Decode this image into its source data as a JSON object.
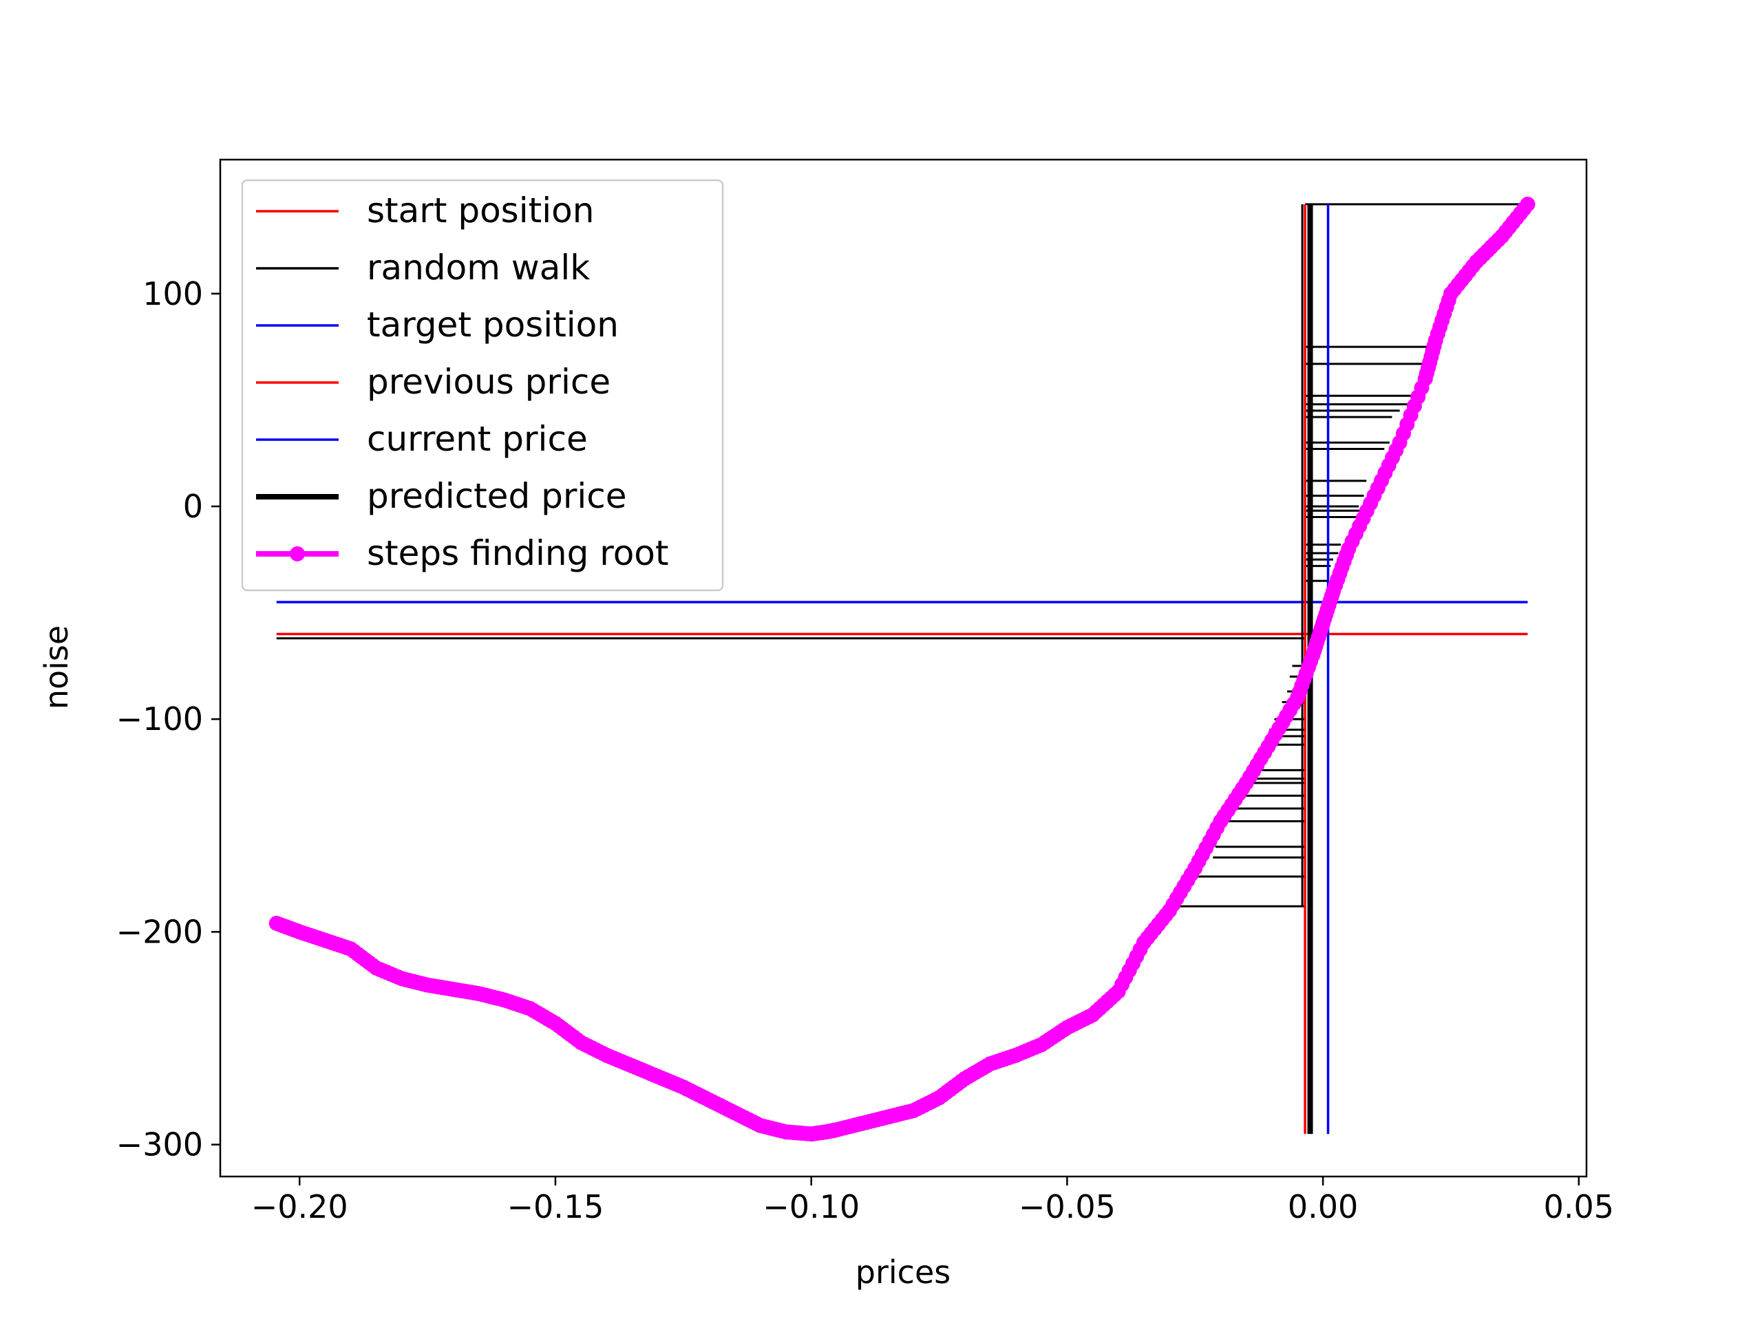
{
  "chart_data": {
    "type": "line",
    "title": "",
    "xlabel": "prices",
    "ylabel": "noise",
    "xlim": [
      -0.2155,
      0.0515
    ],
    "ylim": [
      -315,
      163
    ],
    "xticks": [
      -0.2,
      -0.15,
      -0.1,
      -0.05,
      0.0,
      0.05
    ],
    "xtick_labels": [
      "−0.20",
      "−0.15",
      "−0.10",
      "−0.05",
      "0.00",
      "0.05"
    ],
    "yticks": [
      100,
      0,
      -100,
      -200,
      -300
    ],
    "ytick_labels": [
      "100",
      "0",
      "−100",
      "−200",
      "−300"
    ],
    "grid": false,
    "legend_position": "upper left",
    "legend": [
      {
        "label": "start position",
        "color": "#ff0000",
        "style": "thin"
      },
      {
        "label": "random walk",
        "color": "#000000",
        "style": "thin"
      },
      {
        "label": "target position",
        "color": "#0000ff",
        "style": "thin"
      },
      {
        "label": "previous price",
        "color": "#ff0000",
        "style": "thin"
      },
      {
        "label": "current price",
        "color": "#0000ff",
        "style": "thin"
      },
      {
        "label": "predicted price",
        "color": "#000000",
        "style": "thick"
      },
      {
        "label": "steps finding root",
        "color": "#ff00ff",
        "style": "marker"
      }
    ],
    "series": [
      {
        "name": "start position",
        "kind": "hline",
        "color": "#ff0000",
        "y": -60,
        "x": [
          -0.2045,
          0.04
        ]
      },
      {
        "name": "target position",
        "kind": "hline",
        "color": "#0000ff",
        "y": -45,
        "x": [
          -0.2045,
          0.04
        ]
      },
      {
        "name": "random walk",
        "kind": "hsegments",
        "color": "#000000",
        "x_start": -0.0035,
        "segments": [
          {
            "y": -62,
            "x_end": -0.2045
          },
          {
            "y": 142,
            "x_end": 0.04
          },
          {
            "y": 75,
            "x_end": 0.022
          },
          {
            "y": 67,
            "x_end": 0.02
          },
          {
            "y": 52,
            "x_end": 0.018
          },
          {
            "y": 48,
            "x_end": 0.0165
          },
          {
            "y": 45,
            "x_end": 0.015
          },
          {
            "y": 42,
            "x_end": 0.0135
          },
          {
            "y": 30,
            "x_end": 0.013
          },
          {
            "y": 27,
            "x_end": 0.012
          },
          {
            "y": 12,
            "x_end": 0.0085
          },
          {
            "y": 5,
            "x_end": 0.008
          },
          {
            "y": -2,
            "x_end": 0.0075
          },
          {
            "y": 0,
            "x_end": 0.007
          },
          {
            "y": -5,
            "x_end": 0.0065
          },
          {
            "y": -18,
            "x_end": 0.0035
          },
          {
            "y": -22,
            "x_end": 0.003
          },
          {
            "y": -25,
            "x_end": 0.002
          },
          {
            "y": -28,
            "x_end": 0.0015
          },
          {
            "y": -35,
            "x_end": 0.001
          },
          {
            "y": -75,
            "x_end": -0.006
          },
          {
            "y": -80,
            "x_end": -0.0065
          },
          {
            "y": -87,
            "x_end": -0.007
          },
          {
            "y": -92,
            "x_end": -0.008
          },
          {
            "y": -100,
            "x_end": -0.0095
          },
          {
            "y": -105,
            "x_end": -0.0105
          },
          {
            "y": -108,
            "x_end": -0.011
          },
          {
            "y": -112,
            "x_end": -0.0115
          },
          {
            "y": -124,
            "x_end": -0.015
          },
          {
            "y": -128,
            "x_end": -0.0155
          },
          {
            "y": -130,
            "x_end": -0.016
          },
          {
            "y": -136,
            "x_end": -0.0165
          },
          {
            "y": -142,
            "x_end": -0.0175
          },
          {
            "y": -148,
            "x_end": -0.019
          },
          {
            "y": -160,
            "x_end": -0.021
          },
          {
            "y": -165,
            "x_end": -0.0215
          },
          {
            "y": -174,
            "x_end": -0.0245
          },
          {
            "y": -188,
            "x_end": -0.029
          }
        ]
      },
      {
        "name": "previous price",
        "kind": "vline",
        "color": "#ff0000",
        "x": -0.0035,
        "y": [
          -295,
          142
        ]
      },
      {
        "name": "current price",
        "kind": "vline",
        "color": "#0000ff",
        "x": 0.001,
        "y": [
          -295,
          142
        ]
      },
      {
        "name": "predicted price",
        "kind": "vline",
        "color": "#000000",
        "x": -0.0025,
        "y": [
          -295,
          142
        ]
      },
      {
        "name": "steps finding root",
        "kind": "markers_line",
        "color": "#ff00ff",
        "x": [
          -0.2045,
          -0.2,
          -0.195,
          -0.19,
          -0.185,
          -0.18,
          -0.175,
          -0.17,
          -0.165,
          -0.16,
          -0.155,
          -0.15,
          -0.145,
          -0.14,
          -0.135,
          -0.13,
          -0.125,
          -0.12,
          -0.115,
          -0.11,
          -0.105,
          -0.1,
          -0.097,
          -0.095,
          -0.09,
          -0.085,
          -0.08,
          -0.075,
          -0.07,
          -0.065,
          -0.06,
          -0.055,
          -0.05,
          -0.045,
          -0.04,
          -0.035,
          -0.03,
          -0.025,
          -0.02,
          -0.015,
          -0.01,
          -0.005,
          -0.002,
          0.0,
          0.002,
          0.005,
          0.01,
          0.015,
          0.02,
          0.022,
          0.025,
          0.03,
          0.035,
          0.04
        ],
        "y": [
          -196,
          -200,
          -204,
          -208,
          -217,
          -222,
          -225,
          -227,
          -229,
          -232,
          -236,
          -243,
          -252,
          -258,
          -263,
          -268,
          -273,
          -279,
          -285,
          -291,
          -294,
          -295,
          -294,
          -293,
          -290,
          -287,
          -284,
          -278,
          -269,
          -262,
          -258,
          -253,
          -245,
          -239,
          -228,
          -205,
          -190,
          -170,
          -148,
          -130,
          -110,
          -90,
          -70,
          -55,
          -40,
          -20,
          5,
          30,
          60,
          78,
          100,
          115,
          127,
          142
        ]
      }
    ]
  }
}
